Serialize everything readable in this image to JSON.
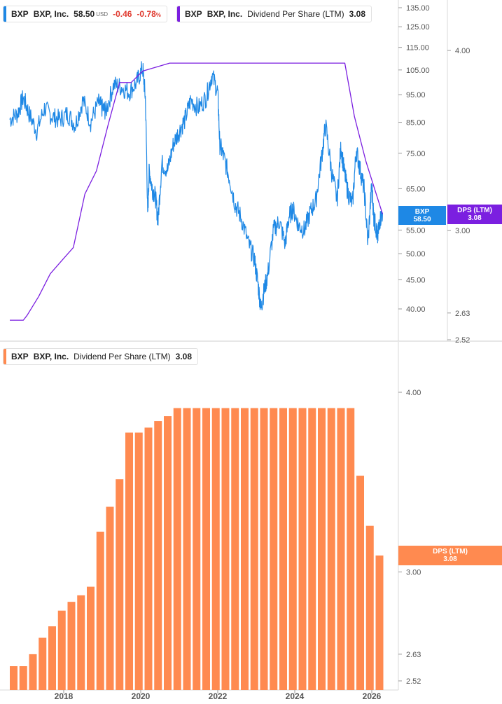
{
  "top_legend_price": {
    "ticker": "BXP",
    "name": "BXP, Inc.",
    "price": "58.50",
    "currency": "USD",
    "change": "-0.46",
    "change_pct": "-0.78",
    "pct_sign": "%",
    "color": "#1e88e5"
  },
  "top_legend_dps": {
    "ticker": "BXP",
    "name": "BXP, Inc.",
    "metric": "Dividend Per Share (LTM)",
    "value": "3.08",
    "color": "#7b1fe0"
  },
  "bottom_legend_dps": {
    "ticker": "BXP",
    "name": "BXP, Inc.",
    "metric": "Dividend Per Share (LTM)",
    "value": "3.08",
    "color": "#ff8a50"
  },
  "price_tag": {
    "line1": "BXP",
    "line2": "58.50",
    "color": "#1e88e5"
  },
  "dps_tag_top": {
    "line1": "DPS (LTM)",
    "line2": "3.08",
    "color": "#7b1fe0"
  },
  "dps_tag_bottom": {
    "line1": "DPS (LTM)",
    "line2": "3.08",
    "color": "#ff8a50"
  },
  "chart_data": [
    {
      "type": "line",
      "scale": "log",
      "price_axis_ticks": [
        "135.00",
        "125.00",
        "115.00",
        "105.00",
        "95.00",
        "85.00",
        "75.00",
        "65.00",
        "55.00",
        "50.00",
        "45.00",
        "40.00"
      ],
      "dps_axis_ticks": [
        "4.00",
        "3.00",
        "2.63",
        "2.52"
      ],
      "series": [
        {
          "name": "BXP",
          "axis": "price",
          "color": "#1e88e5",
          "x": [
            2016.6,
            2016.8,
            2016.95,
            2017.1,
            2017.3,
            2017.5,
            2017.7,
            2017.9,
            2018.1,
            2018.3,
            2018.5,
            2018.7,
            2018.9,
            2019.0,
            2019.1,
            2019.3,
            2019.5,
            2019.7,
            2019.9,
            2020.05,
            2020.12,
            2020.18,
            2020.22,
            2020.3,
            2020.38,
            2020.45,
            2020.55,
            2020.7,
            2020.85,
            2021.0,
            2021.15,
            2021.3,
            2021.5,
            2021.7,
            2021.85,
            2022.0,
            2022.05,
            2022.15,
            2022.3,
            2022.45,
            2022.6,
            2022.8,
            2022.95,
            2023.05,
            2023.12,
            2023.2,
            2023.3,
            2023.45,
            2023.6,
            2023.75,
            2023.85,
            2023.95,
            2024.1,
            2024.25,
            2024.4,
            2024.55,
            2024.7,
            2024.8,
            2024.95,
            2025.1,
            2025.2,
            2025.28,
            2025.38,
            2025.5,
            2025.6,
            2025.7,
            2025.8,
            2025.9,
            2026.0,
            2026.05,
            2026.1,
            2026.15,
            2026.2,
            2026.28
          ],
          "values": [
            86,
            88,
            94,
            88,
            82,
            90,
            87,
            86,
            88,
            84,
            93,
            85,
            92,
            90,
            89,
            99,
            98,
            96,
            100,
            106,
            94,
            58,
            70,
            65,
            63,
            57,
            72,
            70,
            78,
            82,
            86,
            93,
            90,
            94,
            103,
            96,
            78,
            74,
            68,
            61,
            58,
            52,
            49,
            44,
            40,
            43,
            46,
            55,
            57,
            52,
            58,
            60,
            56,
            55,
            59,
            62,
            74,
            84,
            70,
            62,
            77,
            70,
            64,
            61,
            76,
            70,
            65,
            52,
            66,
            58,
            56,
            53,
            57,
            59
          ]
        },
        {
          "name": "DPS (LTM)",
          "axis": "dps",
          "color": "#7b1fe0",
          "x": [
            2016.6,
            2016.95,
            2017.05,
            2017.35,
            2017.65,
            2017.95,
            2018.25,
            2018.55,
            2018.85,
            2019.15,
            2019.45,
            2019.75,
            2020.05,
            2020.75,
            2025.3,
            2025.55,
            2025.85,
            2026.28
          ],
          "values": [
            2.6,
            2.6,
            2.62,
            2.7,
            2.8,
            2.86,
            2.92,
            3.18,
            3.3,
            3.55,
            3.8,
            3.8,
            3.87,
            3.92,
            3.92,
            3.6,
            3.35,
            3.08
          ]
        }
      ]
    },
    {
      "type": "bar",
      "scale": "log",
      "xlabel_ticks": [
        "2018",
        "2020",
        "2022",
        "2024",
        "2026"
      ],
      "yaxis_ticks": [
        "4.00",
        "3.00",
        "2.63",
        "2.52"
      ],
      "series": [
        {
          "name": "DPS (LTM)",
          "color": "#ff8a50",
          "x": [
            2016.6,
            2016.85,
            2017.1,
            2017.35,
            2017.6,
            2017.85,
            2018.1,
            2018.35,
            2018.6,
            2018.85,
            2019.1,
            2019.35,
            2019.6,
            2019.85,
            2020.1,
            2020.35,
            2020.6,
            2020.85,
            2021.1,
            2021.35,
            2021.6,
            2021.85,
            2022.1,
            2022.35,
            2022.6,
            2022.85,
            2023.1,
            2023.35,
            2023.6,
            2023.85,
            2024.1,
            2024.35,
            2024.6,
            2024.85,
            2025.1,
            2025.35,
            2025.6,
            2025.85,
            2026.1
          ],
          "values": [
            2.58,
            2.58,
            2.63,
            2.7,
            2.75,
            2.82,
            2.86,
            2.89,
            2.93,
            3.2,
            3.33,
            3.48,
            3.75,
            3.75,
            3.78,
            3.82,
            3.85,
            3.9,
            3.9,
            3.9,
            3.9,
            3.9,
            3.9,
            3.9,
            3.9,
            3.9,
            3.9,
            3.9,
            3.9,
            3.9,
            3.9,
            3.9,
            3.9,
            3.9,
            3.9,
            3.9,
            3.5,
            3.23,
            3.08
          ]
        }
      ]
    }
  ]
}
